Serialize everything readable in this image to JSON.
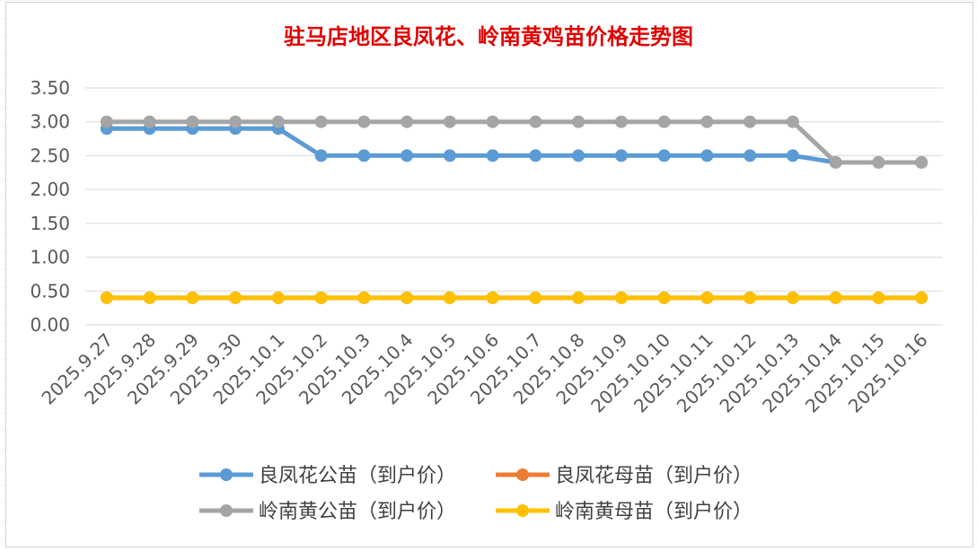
{
  "chart_data": {
    "type": "line",
    "title": "驻马店地区良凤花、岭南黄鸡苗价格走势图",
    "xlabel": "",
    "ylabel": "",
    "ylim": [
      0,
      3.5
    ],
    "yticks": [
      "0.00",
      "0.50",
      "1.00",
      "1.50",
      "2.00",
      "2.50",
      "3.00",
      "3.50"
    ],
    "grid": true,
    "legend_position": "bottom",
    "categories": [
      "2025.9.27",
      "2025.9.28",
      "2025.9.29",
      "2025.9.30",
      "2025.10.1",
      "2025.10.2",
      "2025.10.3",
      "2025.10.4",
      "2025.10.5",
      "2025.10.6",
      "2025.10.7",
      "2025.10.8",
      "2025.10.9",
      "2025.10.10",
      "2025.10.11",
      "2025.10.12",
      "2025.10.13",
      "2025.10.14",
      "2025.10.15",
      "2025.10.16"
    ],
    "series": [
      {
        "name": "良凤花公苗（到户价）",
        "color": "#5b9bd5",
        "values": [
          2.9,
          2.9,
          2.9,
          2.9,
          2.9,
          2.5,
          2.5,
          2.5,
          2.5,
          2.5,
          2.5,
          2.5,
          2.5,
          2.5,
          2.5,
          2.5,
          2.5,
          2.4,
          2.4,
          2.4
        ]
      },
      {
        "name": "良凤花母苗（到户价）",
        "color": "#ed7d31",
        "values": [
          0.4,
          0.4,
          0.4,
          0.4,
          0.4,
          0.4,
          0.4,
          0.4,
          0.4,
          0.4,
          0.4,
          0.4,
          0.4,
          0.4,
          0.4,
          0.4,
          0.4,
          0.4,
          0.4,
          0.4
        ]
      },
      {
        "name": "岭南黄公苗（到户价）",
        "color": "#a5a5a5",
        "values": [
          3.0,
          3.0,
          3.0,
          3.0,
          3.0,
          3.0,
          3.0,
          3.0,
          3.0,
          3.0,
          3.0,
          3.0,
          3.0,
          3.0,
          3.0,
          3.0,
          3.0,
          2.4,
          2.4,
          2.4
        ]
      },
      {
        "name": "岭南黄母苗（到户价）",
        "color": "#ffc000",
        "values": [
          0.4,
          0.4,
          0.4,
          0.4,
          0.4,
          0.4,
          0.4,
          0.4,
          0.4,
          0.4,
          0.4,
          0.4,
          0.4,
          0.4,
          0.4,
          0.4,
          0.4,
          0.4,
          0.4,
          0.4
        ]
      }
    ]
  }
}
